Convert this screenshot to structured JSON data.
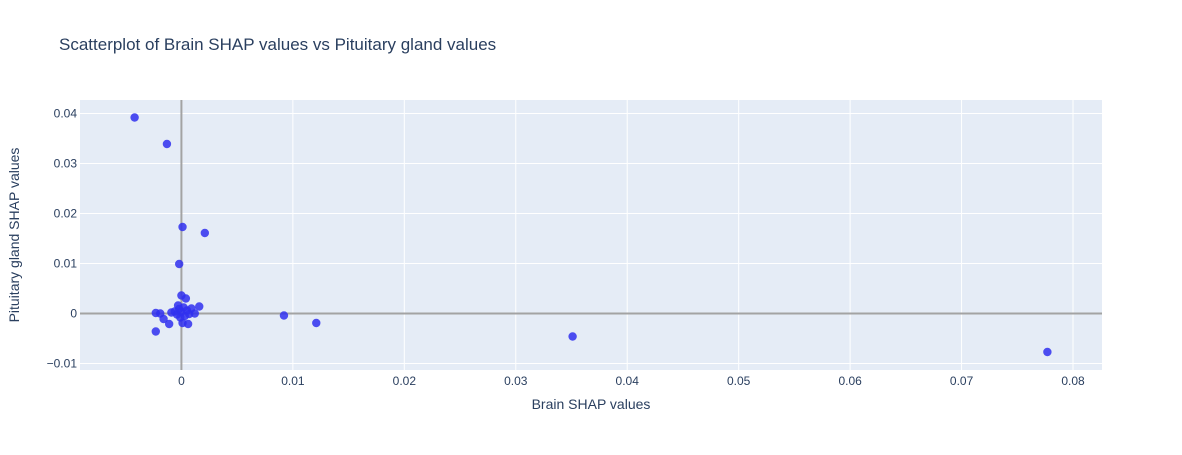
{
  "chart_data": {
    "type": "scatter",
    "title": "Scatterplot of Brain SHAP values vs Pituitary gland values",
    "xlabel": "Brain SHAP values",
    "ylabel": "Pituitary gland SHAP values",
    "xlim": [
      -0.0091,
      0.0826
    ],
    "ylim": [
      -0.0113,
      0.0427
    ],
    "x_ticks": [
      0,
      0.01,
      0.02,
      0.03,
      0.04,
      0.05,
      0.06,
      0.07,
      0.08
    ],
    "x_tick_labels": [
      "0",
      "0.01",
      "0.02",
      "0.03",
      "0.04",
      "0.05",
      "0.06",
      "0.07",
      "0.08"
    ],
    "y_ticks": [
      -0.01,
      0,
      0.01,
      0.02,
      0.03,
      0.04
    ],
    "y_tick_labels": [
      "−0.01",
      "0",
      "0.01",
      "0.02",
      "0.03",
      "0.04"
    ],
    "grid": true,
    "zero_lines": true,
    "colors": {
      "plot_background": "#e5ecf6",
      "grid": "#ffffff",
      "zero_line": "#a3a3a3",
      "marker": "#3030ee"
    },
    "points": [
      {
        "x": -0.0042,
        "y": 0.0392
      },
      {
        "x": -0.0013,
        "y": 0.0339
      },
      {
        "x": 0.0001,
        "y": 0.0173
      },
      {
        "x": 0.0021,
        "y": 0.0161
      },
      {
        "x": -0.0002,
        "y": 0.0099
      },
      {
        "x": 0.0092,
        "y": -0.0004
      },
      {
        "x": 0.0121,
        "y": -0.0019
      },
      {
        "x": 0.0351,
        "y": -0.0046
      },
      {
        "x": 0.0777,
        "y": -0.0077
      },
      {
        "x": -0.0023,
        "y": -0.0036
      },
      {
        "x": -0.0023,
        "y": 0.0001
      },
      {
        "x": -0.0019,
        "y": 0.0
      },
      {
        "x": -0.0016,
        "y": -0.0011
      },
      {
        "x": -0.0011,
        "y": -0.0021
      },
      {
        "x": -0.0009,
        "y": 0.0002
      },
      {
        "x": -0.0006,
        "y": 0.0004
      },
      {
        "x": -0.0004,
        "y": -0.0002
      },
      {
        "x": -0.0003,
        "y": 0.0016
      },
      {
        "x": -0.0002,
        "y": 0.0009
      },
      {
        "x": -0.0001,
        "y": -0.0008
      },
      {
        "x": 0.0,
        "y": 0.0036
      },
      {
        "x": 0.0,
        "y": 0.0003
      },
      {
        "x": 0.0001,
        "y": -0.0019
      },
      {
        "x": 0.0002,
        "y": 0.0012
      },
      {
        "x": 0.0003,
        "y": -0.0005
      },
      {
        "x": 0.0004,
        "y": 0.003
      },
      {
        "x": 0.0005,
        "y": 0.0006
      },
      {
        "x": 0.0006,
        "y": -0.0021
      },
      {
        "x": 0.0007,
        "y": -0.0001
      },
      {
        "x": 0.0009,
        "y": 0.001
      },
      {
        "x": 0.0012,
        "y": 0.0
      },
      {
        "x": 0.0016,
        "y": 0.0014
      }
    ]
  }
}
